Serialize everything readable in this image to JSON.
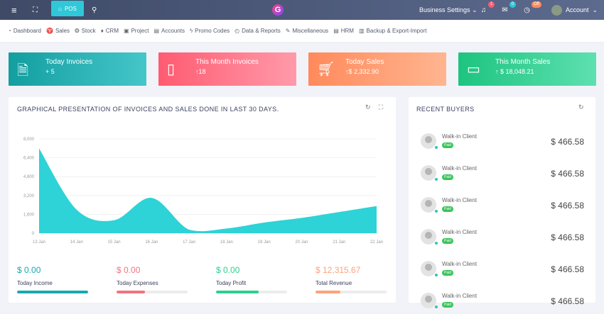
{
  "topbar": {
    "pos_label": "POS",
    "business_settings": "Business Settings",
    "notifications_count": "1",
    "messages_count": "0",
    "clock_badge": "Off",
    "account": "Account"
  },
  "menu": [
    "Dashboard",
    "Sales",
    "Stock",
    "CRM",
    "Project",
    "Accounts",
    "Promo Codes",
    "Data & Reports",
    "Miscellaneous",
    "HRM",
    "Backup & Export-Import"
  ],
  "cards": [
    {
      "title": "Today Invoices",
      "value": "+ 5",
      "icon": "document-icon",
      "color_from": "#139ea0",
      "color_to": "#45c6c9"
    },
    {
      "title": "This Month Invoices",
      "value": "↑18",
      "icon": "notebook-icon",
      "color_from": "#ff5b71",
      "color_to": "#ff9aaa"
    },
    {
      "title": "Today Sales",
      "value": "↑$ 2,332.90",
      "icon": "cart-icon",
      "color_from": "#ff8a5c",
      "color_to": "#ffb590"
    },
    {
      "title": "This Month Sales",
      "value": "↑ $ 18,048.21",
      "icon": "wallet-icon",
      "color_from": "#1dc480",
      "color_to": "#5ee0b0"
    }
  ],
  "chart_panel": {
    "title": "GRAPHICAL PRESENTATION OF INVOICES AND SALES DONE IN LAST 30 DAYS."
  },
  "chart_data": {
    "type": "area",
    "categories": [
      "13 Jan",
      "14 Jan",
      "15 Jan",
      "16 Jan",
      "17 Jan",
      "18 Jan",
      "19 Jan",
      "20 Jan",
      "21 Jan",
      "22 Jan"
    ],
    "values": [
      7200,
      2000,
      1100,
      3000,
      300,
      400,
      900,
      1300,
      1800,
      2300
    ],
    "yticks": [
      "0",
      "1,600",
      "3,200",
      "4,800",
      "6,400",
      "8,000"
    ],
    "ylim": [
      0,
      8000
    ],
    "color": "#2dd3d6",
    "grid": true
  },
  "stats": [
    {
      "value": "$ 0.00",
      "label": "Today Income",
      "progress": 100,
      "color": "#16aab0"
    },
    {
      "value": "$ 0.00",
      "label": "Today Expenses",
      "progress": 40,
      "color": "#f2737f"
    },
    {
      "value": "$ 0.00",
      "label": "Today Profit",
      "progress": 60,
      "color": "#2ccf8e"
    },
    {
      "value": "$ 12,315.67",
      "label": "Total Revenue",
      "progress": 35,
      "color": "#ffa27a"
    }
  ],
  "recent": {
    "title": "RECENT BUYERS",
    "buyers": [
      {
        "name": "Walk-in Client",
        "status": "Paid",
        "amount": "$ 466.58"
      },
      {
        "name": "Walk-in Client",
        "status": "Paid",
        "amount": "$ 466.58"
      },
      {
        "name": "Walk-in Client",
        "status": "Paid",
        "amount": "$ 466.58"
      },
      {
        "name": "Walk-in Client",
        "status": "Paid",
        "amount": "$ 466.58"
      },
      {
        "name": "Walk-in Client",
        "status": "Paid",
        "amount": "$ 466.58"
      },
      {
        "name": "Walk-in Client",
        "status": "Paid",
        "amount": "$ 466.58"
      }
    ]
  }
}
